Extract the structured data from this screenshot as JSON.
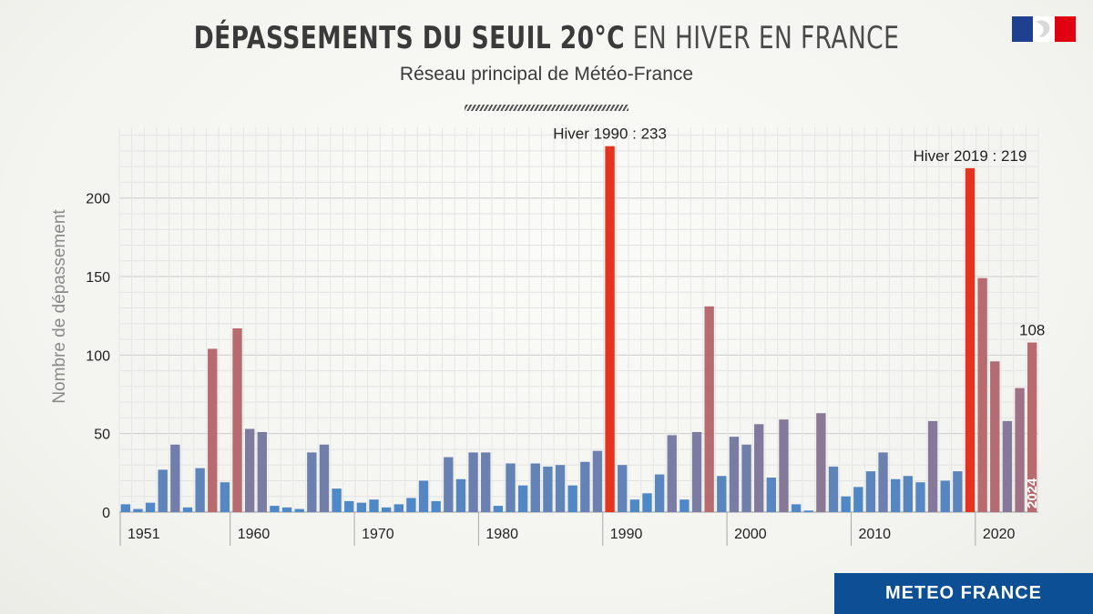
{
  "header": {
    "title_bold": "DÉPASSEMENTS DU SEUIL 20°C",
    "title_light": "EN HIVER EN FRANCE",
    "subtitle": "Réseau principal de Météo-France"
  },
  "brand": {
    "label": "METEO FRANCE"
  },
  "colors": {
    "low": "#4f88c7",
    "high": "#b86b6e",
    "record": "#e4331f"
  },
  "chart_data": {
    "type": "bar",
    "title": "DÉPASSEMENTS DU SEUIL 20°C EN HIVER EN FRANCE",
    "subtitle": "Réseau principal de Météo-France",
    "xlabel": "",
    "ylabel": "Nombre de dépassement",
    "ylim": [
      0,
      245
    ],
    "yticks": [
      0,
      50,
      100,
      150,
      200
    ],
    "xticks": [
      "1951",
      "1960",
      "1970",
      "1980",
      "1990",
      "2000",
      "2010",
      "2020"
    ],
    "grid": true,
    "categories": [
      1951,
      1952,
      1953,
      1954,
      1955,
      1956,
      1957,
      1958,
      1959,
      1960,
      1961,
      1962,
      1963,
      1964,
      1965,
      1966,
      1967,
      1968,
      1969,
      1970,
      1971,
      1972,
      1973,
      1974,
      1975,
      1976,
      1977,
      1978,
      1979,
      1980,
      1981,
      1982,
      1983,
      1984,
      1985,
      1986,
      1987,
      1988,
      1989,
      1990,
      1991,
      1992,
      1993,
      1994,
      1995,
      1996,
      1997,
      1998,
      1999,
      2000,
      2001,
      2002,
      2003,
      2004,
      2005,
      2006,
      2007,
      2008,
      2009,
      2010,
      2011,
      2012,
      2013,
      2014,
      2015,
      2016,
      2017,
      2018,
      2019,
      2020,
      2021,
      2022,
      2023,
      2024
    ],
    "values": [
      5,
      2,
      6,
      27,
      43,
      3,
      28,
      104,
      19,
      117,
      53,
      51,
      4,
      3,
      2,
      38,
      43,
      15,
      7,
      6,
      8,
      3,
      5,
      9,
      20,
      7,
      35,
      21,
      38,
      38,
      4,
      31,
      17,
      31,
      29,
      30,
      17,
      32,
      39,
      233,
      30,
      8,
      12,
      24,
      49,
      8,
      51,
      131,
      23,
      48,
      43,
      56,
      22,
      59,
      5,
      1,
      63,
      29,
      10,
      16,
      26,
      38,
      21,
      23,
      19,
      58,
      20,
      26,
      219,
      149,
      96,
      58,
      79,
      108
    ],
    "annotations": [
      {
        "year": 1990,
        "label": "Hiver 1990 : 233"
      },
      {
        "year": 2019,
        "label": "Hiver 2019 : 219"
      },
      {
        "year": 2024,
        "label": "108"
      }
    ],
    "inbar_label": {
      "year": 2024,
      "label": "2024"
    }
  }
}
